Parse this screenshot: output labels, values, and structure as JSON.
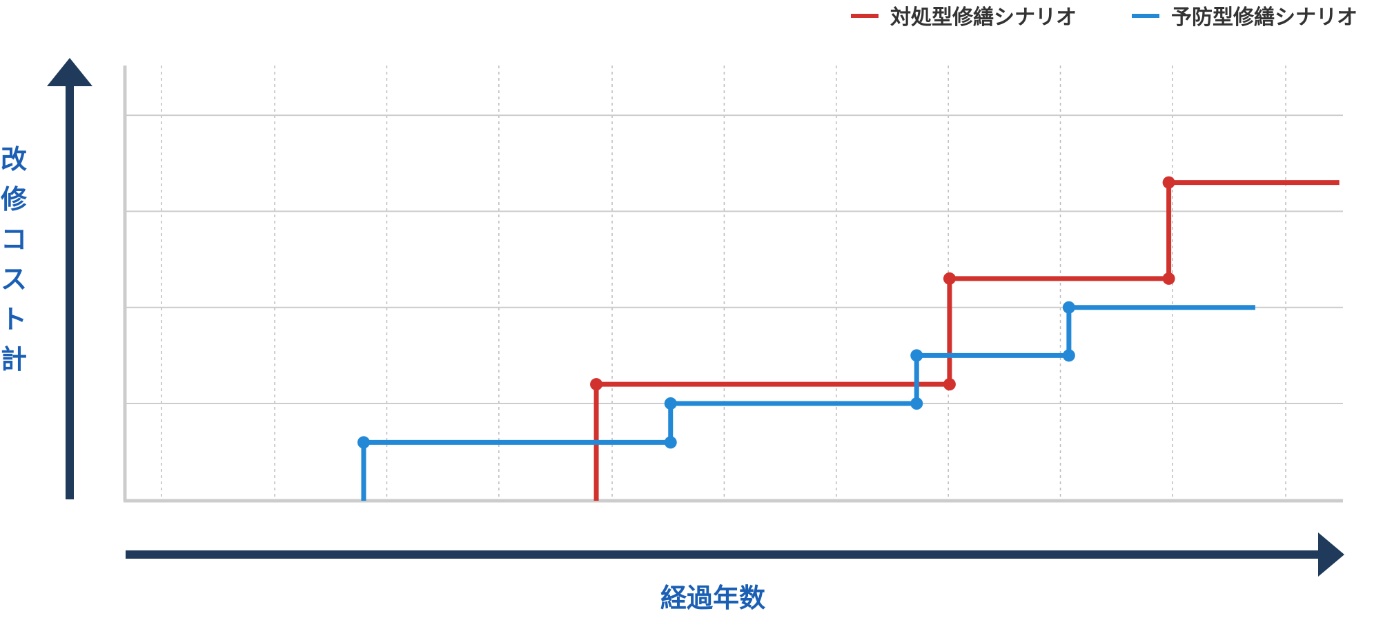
{
  "chart_data": {
    "type": "line",
    "step": true,
    "xlabel": "経過年数",
    "ylabel": "改修コスト計",
    "grid": {
      "horizontal": "solid",
      "vertical": "dotted"
    },
    "legend_position": "top-right",
    "xlim": [
      0,
      100
    ],
    "ylim": [
      0,
      4.5
    ],
    "x_gridlines": [
      3,
      12.3,
      21.5,
      30.7,
      40,
      49.2,
      58.4,
      67.6,
      76.8,
      86,
      95.3
    ],
    "y_gridlines": [
      1,
      2,
      3,
      4
    ],
    "series": [
      {
        "name": "対処型修繕シナリオ",
        "color": "#d2322d",
        "points": [
          [
            38.7,
            0
          ],
          [
            38.7,
            1.2
          ],
          [
            67.7,
            1.2
          ],
          [
            67.7,
            2.3
          ],
          [
            85.7,
            2.3
          ],
          [
            85.7,
            3.3
          ],
          [
            99.7,
            3.3
          ]
        ],
        "markers": [
          [
            38.7,
            1.2
          ],
          [
            67.7,
            1.2
          ],
          [
            67.7,
            2.3
          ],
          [
            85.7,
            2.3
          ],
          [
            85.7,
            3.3
          ]
        ]
      },
      {
        "name": "予防型修繕シナリオ",
        "color": "#2389d6",
        "points": [
          [
            19.6,
            0
          ],
          [
            19.6,
            0.6
          ],
          [
            44.8,
            0.6
          ],
          [
            44.8,
            1.0
          ],
          [
            65.0,
            1.0
          ],
          [
            65.0,
            1.5
          ],
          [
            77.5,
            1.5
          ],
          [
            77.5,
            2.0
          ],
          [
            92.8,
            2.0
          ]
        ],
        "markers": [
          [
            19.6,
            0.6
          ],
          [
            44.8,
            0.6
          ],
          [
            44.8,
            1.0
          ],
          [
            65.0,
            1.0
          ],
          [
            65.0,
            1.5
          ],
          [
            77.5,
            1.5
          ],
          [
            77.5,
            2.0
          ]
        ]
      }
    ]
  },
  "colors": {
    "axis_arrow": "#1f3a5a",
    "axis_title": "#1a5fb4",
    "grid": "#cccccc",
    "legend_text": "#333333"
  }
}
